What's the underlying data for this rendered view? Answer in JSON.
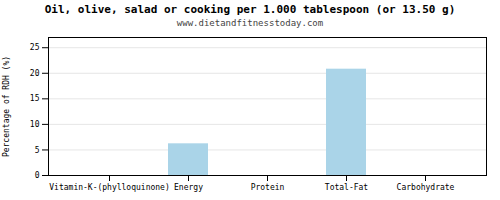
{
  "chart_data": {
    "type": "bar",
    "title": "Oil, olive, salad or cooking per 1.000 tablespoon (or 13.50 g)",
    "subtitle": "www.dietandfitnesstoday.com",
    "categories": [
      "Vitamin-K-(phylloquinone)",
      "Energy",
      "Protein",
      "Total-Fat",
      "Carbohydrate"
    ],
    "values": [
      0.0,
      6.2,
      0.0,
      20.8,
      0.0
    ],
    "color": "#aad4e8",
    "ylabel": "Percentage of RDH (%)",
    "ylim": [
      0,
      27
    ],
    "yticks": [
      0,
      5,
      10,
      15,
      20,
      25
    ],
    "grid": true
  }
}
